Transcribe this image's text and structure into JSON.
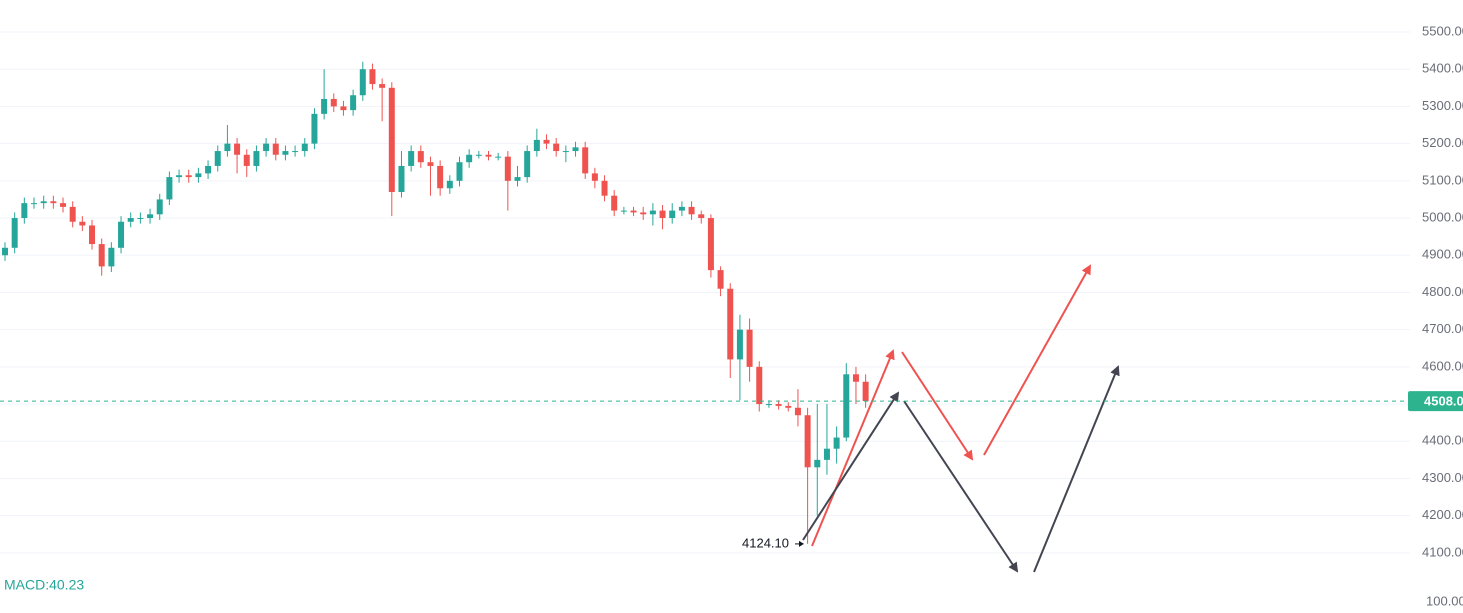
{
  "chart_data": {
    "type": "candlestick",
    "open": [
      4900,
      4920,
      5000,
      5040,
      5040,
      5045,
      5040,
      5030,
      4990,
      4980,
      4930,
      4870,
      4920,
      4990,
      5000,
      5000,
      5010,
      5050,
      5110,
      5115,
      5110,
      5120,
      5140,
      5180,
      5200,
      5170,
      5140,
      5180,
      5200,
      5170,
      5180,
      5180,
      5200,
      5280,
      5320,
      5300,
      5290,
      5330,
      5400,
      5360,
      5350,
      5070,
      5140,
      5180,
      5150,
      5140,
      5080,
      5100,
      5150,
      5170,
      5170,
      5165,
      5165,
      5100,
      5110,
      5180,
      5210,
      5200,
      5180,
      5180,
      5190,
      5120,
      5100,
      5060,
      5020,
      5020,
      5015,
      5010,
      5020,
      5000,
      5020,
      5030,
      5010,
      5000,
      4860,
      4810,
      4620,
      4700,
      4600,
      4500,
      4500,
      4495,
      4490,
      4470,
      4330,
      4350,
      4380,
      4410,
      4580,
      4560
    ],
    "high": [
      4935,
      5015,
      5055,
      5055,
      5060,
      5060,
      5055,
      5045,
      5005,
      4995,
      4945,
      4935,
      5005,
      5015,
      5015,
      5025,
      5065,
      5125,
      5130,
      5130,
      5135,
      5155,
      5195,
      5250,
      5215,
      5185,
      5195,
      5215,
      5215,
      5195,
      5195,
      5215,
      5295,
      5400,
      5335,
      5315,
      5345,
      5420,
      5415,
      5375,
      5365,
      5180,
      5195,
      5195,
      5165,
      5155,
      5115,
      5165,
      5185,
      5180,
      5180,
      5175,
      5180,
      5140,
      5195,
      5240,
      5225,
      5215,
      5195,
      5205,
      5205,
      5135,
      5115,
      5075,
      5030,
      5030,
      5030,
      5040,
      5035,
      5040,
      5045,
      5045,
      5020,
      5010,
      4870,
      4825,
      4740,
      4730,
      4615,
      4510,
      4510,
      4505,
      4540,
      4490,
      4500,
      4500,
      4440,
      4610,
      4600,
      4580
    ],
    "low": [
      4885,
      4905,
      4985,
      5025,
      5025,
      5025,
      5015,
      4975,
      4965,
      4915,
      4845,
      4855,
      4905,
      4975,
      4985,
      4985,
      4995,
      5035,
      5095,
      5095,
      5095,
      5105,
      5125,
      5165,
      5120,
      5110,
      5125,
      5165,
      5155,
      5155,
      5165,
      5165,
      5185,
      5265,
      5285,
      5275,
      5275,
      5315,
      5345,
      5260,
      5005,
      5055,
      5125,
      5135,
      5060,
      5060,
      5065,
      5085,
      5135,
      5160,
      5155,
      5155,
      5020,
      5085,
      5095,
      5165,
      5185,
      5165,
      5150,
      5165,
      5105,
      5080,
      5045,
      5005,
      5010,
      5005,
      4995,
      4980,
      4970,
      4985,
      5005,
      4995,
      4985,
      4840,
      4790,
      4570,
      4510,
      4560,
      4480,
      4490,
      4485,
      4480,
      4440,
      4124.1,
      4200,
      4310,
      4340,
      4400,
      4500,
      4490
    ],
    "close": [
      4920,
      5000,
      5040,
      5040,
      5045,
      5040,
      5030,
      4990,
      4980,
      4930,
      4870,
      4920,
      4990,
      5000,
      5000,
      5010,
      5050,
      5110,
      5115,
      5110,
      5120,
      5140,
      5180,
      5200,
      5170,
      5140,
      5180,
      5200,
      5170,
      5180,
      5180,
      5200,
      5280,
      5320,
      5300,
      5290,
      5330,
      5400,
      5360,
      5350,
      5070,
      5140,
      5180,
      5150,
      5140,
      5080,
      5100,
      5150,
      5170,
      5170,
      5165,
      5165,
      5100,
      5110,
      5180,
      5210,
      5200,
      5180,
      5180,
      5190,
      5120,
      5100,
      5060,
      5020,
      5020,
      5015,
      5010,
      5020,
      5000,
      5020,
      5030,
      5010,
      5000,
      4860,
      4810,
      4620,
      4700,
      4600,
      4500,
      4500,
      4495,
      4490,
      4470,
      4330,
      4350,
      4380,
      4410,
      4580,
      4560,
      4508
    ],
    "up_color": "#26a69a",
    "down_color": "#ef5350",
    "ylim": [
      4054,
      5586
    ],
    "yticks": [
      {
        "value": 4100,
        "label": "4100.00"
      },
      {
        "value": 4200,
        "label": "4200.00"
      },
      {
        "value": 4300,
        "label": "4300.00"
      },
      {
        "value": 4400,
        "label": "4400.00"
      },
      {
        "value": 4500,
        "label": "4500.00"
      },
      {
        "value": 4600,
        "label": "4600.00"
      },
      {
        "value": 4700,
        "label": "4700.00"
      },
      {
        "value": 4800,
        "label": "4800.00"
      },
      {
        "value": 4900,
        "label": "4900.00"
      },
      {
        "value": 5000,
        "label": "5000.00"
      },
      {
        "value": 5100,
        "label": "5100.00"
      },
      {
        "value": 5200,
        "label": "5200.00"
      },
      {
        "value": 5300,
        "label": "5300.00"
      },
      {
        "value": 5400,
        "label": "5400.00"
      },
      {
        "value": 5500,
        "label": "5500.00"
      }
    ],
    "grid": true,
    "last_price": {
      "value": 4508,
      "label": "4508.00",
      "color": "#2db48f"
    },
    "low_label": {
      "value": 4124.1,
      "label": "4124.10"
    },
    "indicator_label": "MACD:40.23",
    "indicator_yticks": [
      {
        "value": 100,
        "label": "100.00"
      }
    ]
  }
}
